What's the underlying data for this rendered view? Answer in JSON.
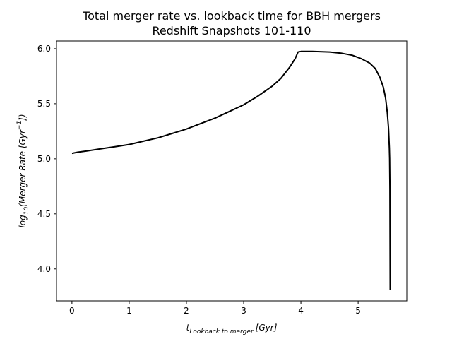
{
  "chart_data": {
    "type": "line",
    "title": "Total merger rate vs. lookback time for BBH mergers",
    "subtitle": "Redshift Snapshots 101-110",
    "xlabel": {
      "main": "t",
      "subscript": "Lookback to merger",
      "unit": "[Gyr]"
    },
    "ylabel": {
      "prefix": "log",
      "base": "10",
      "body": "(Merger Rate [Gyr",
      "exponent": "−1",
      "suffix": "])"
    },
    "xlim": [
      -0.27,
      5.85
    ],
    "ylim": [
      3.71,
      6.07
    ],
    "xticks": [
      0,
      1,
      2,
      3,
      4,
      5
    ],
    "xtick_labels": [
      "0",
      "1",
      "2",
      "3",
      "4",
      "5"
    ],
    "yticks": [
      4.0,
      4.5,
      5.0,
      5.5,
      6.0
    ],
    "ytick_labels": [
      "4.0",
      "4.5",
      "5.0",
      "5.5",
      "6.0"
    ],
    "grid": false,
    "color": "#000000",
    "series": [
      {
        "x": [
          0.0,
          0.1,
          0.25,
          0.5,
          0.75,
          1.0,
          1.25,
          1.5,
          1.75,
          2.0,
          2.25,
          2.5,
          2.75,
          3.0,
          3.25,
          3.5,
          3.65,
          3.8,
          3.9,
          3.95,
          4.0,
          4.2,
          4.5,
          4.7,
          4.9,
          5.05,
          5.2,
          5.3,
          5.38,
          5.44,
          5.48,
          5.51,
          5.53,
          5.545,
          5.55,
          5.555,
          5.56
        ],
        "y": [
          5.05,
          5.06,
          5.07,
          5.09,
          5.11,
          5.13,
          5.16,
          5.19,
          5.23,
          5.27,
          5.32,
          5.37,
          5.43,
          5.49,
          5.57,
          5.66,
          5.73,
          5.83,
          5.91,
          5.97,
          5.975,
          5.975,
          5.97,
          5.96,
          5.94,
          5.91,
          5.87,
          5.82,
          5.74,
          5.65,
          5.55,
          5.42,
          5.28,
          5.1,
          5.0,
          4.73,
          3.81
        ]
      }
    ]
  }
}
